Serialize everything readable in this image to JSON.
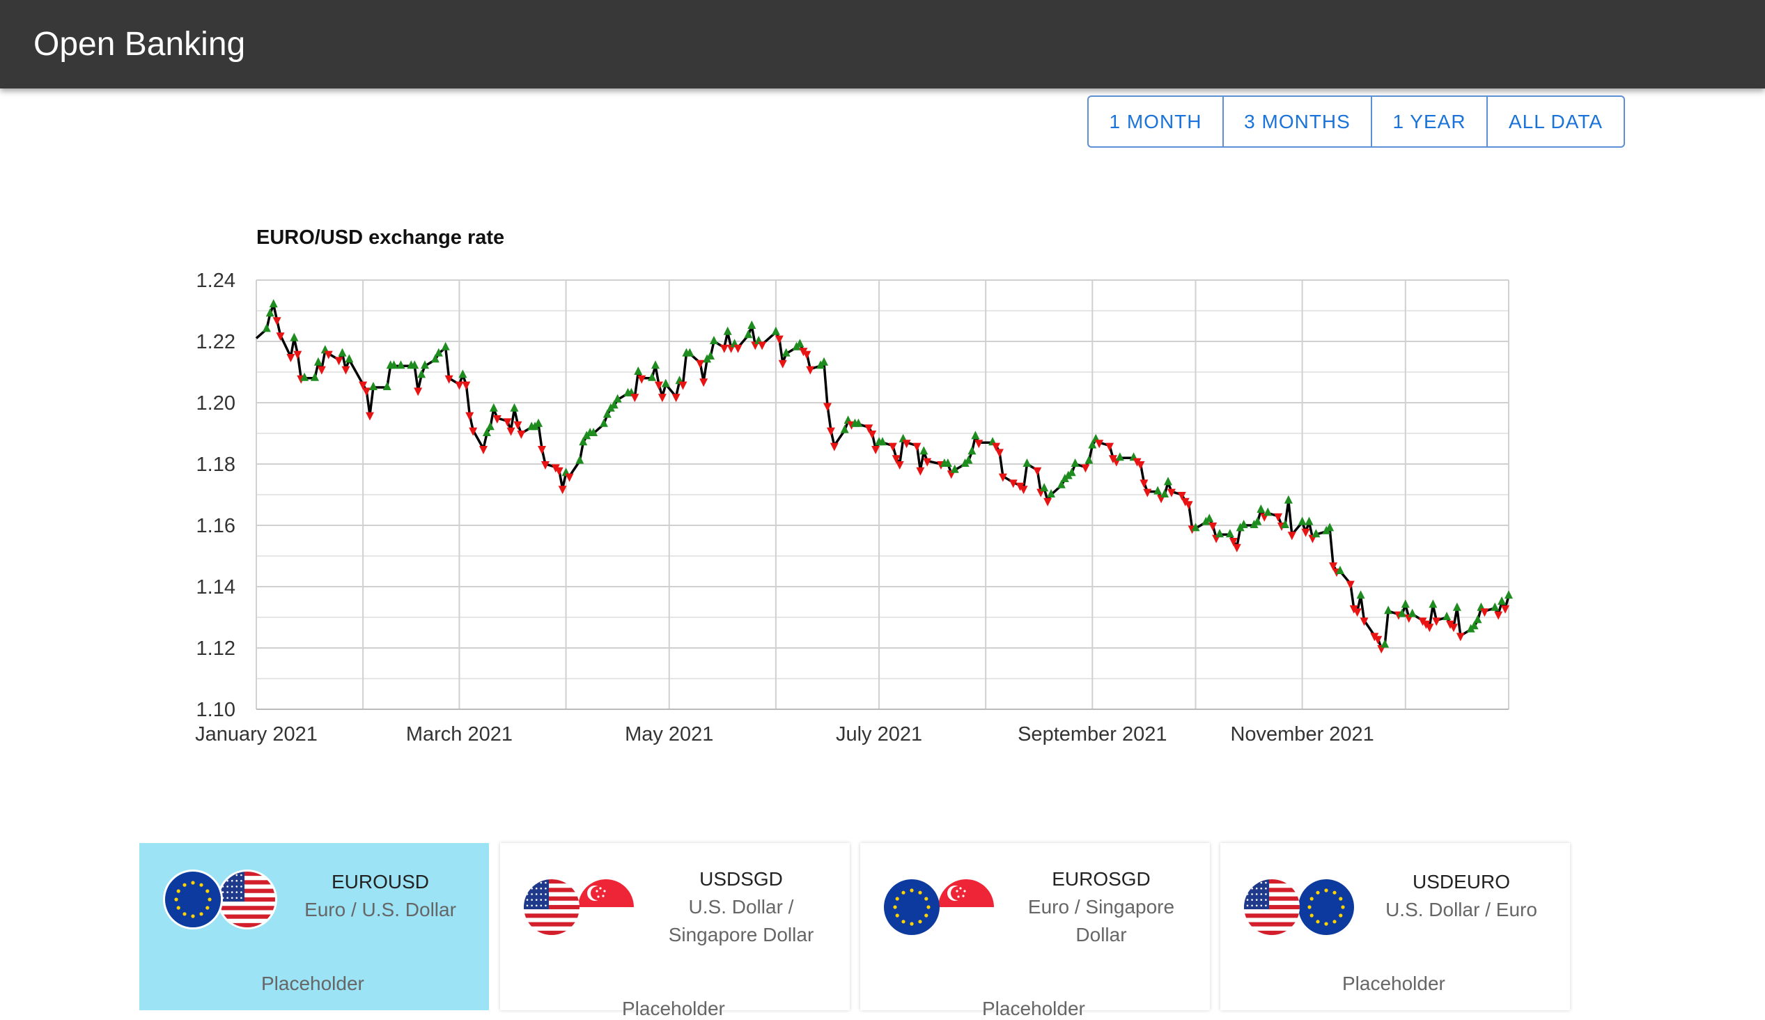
{
  "app": {
    "title": "Open Banking"
  },
  "range_buttons": [
    "1 MONTH",
    "3 MONTHS",
    "1 YEAR",
    "ALL DATA"
  ],
  "chart_data": {
    "type": "line",
    "title": "EURO/USD exchange rate",
    "xlabel": "",
    "ylabel": "",
    "ylim": [
      1.1,
      1.24
    ],
    "yticks": [
      "1.24",
      "1.22",
      "1.20",
      "1.18",
      "1.16",
      "1.14",
      "1.12",
      "1.10"
    ],
    "xticks": [
      "January 2021",
      "March 2021",
      "May 2021",
      "July 2021",
      "September 2021",
      "November 2021"
    ],
    "xrange": [
      "2021-01-01",
      "2021-12-31"
    ],
    "grid": true,
    "line_color": "#000000",
    "marker_up_color": "#1e8c1e",
    "marker_down_color": "#e81414",
    "series": [
      {
        "values": [
          [
            "2021-01-01",
            1.221
          ],
          [
            "2021-01-04",
            1.224
          ],
          [
            "2021-01-05",
            1.229
          ],
          [
            "2021-01-06",
            1.232
          ],
          [
            "2021-01-07",
            1.227
          ],
          [
            "2021-01-08",
            1.222
          ],
          [
            "2021-01-11",
            1.215
          ],
          [
            "2021-01-12",
            1.221
          ],
          [
            "2021-01-13",
            1.216
          ],
          [
            "2021-01-14",
            1.208
          ],
          [
            "2021-01-15",
            1.208
          ],
          [
            "2021-01-18",
            1.208
          ],
          [
            "2021-01-19",
            1.213
          ],
          [
            "2021-01-20",
            1.211
          ],
          [
            "2021-01-21",
            1.217
          ],
          [
            "2021-01-22",
            1.216
          ],
          [
            "2021-01-25",
            1.214
          ],
          [
            "2021-01-26",
            1.216
          ],
          [
            "2021-01-27",
            1.211
          ],
          [
            "2021-01-28",
            1.214
          ],
          [
            "2021-02-01",
            1.206
          ],
          [
            "2021-02-02",
            1.204
          ],
          [
            "2021-02-03",
            1.196
          ],
          [
            "2021-02-04",
            1.205
          ],
          [
            "2021-02-08",
            1.205
          ],
          [
            "2021-02-09",
            1.212
          ],
          [
            "2021-02-10",
            1.212
          ],
          [
            "2021-02-12",
            1.212
          ],
          [
            "2021-02-15",
            1.212
          ],
          [
            "2021-02-16",
            1.212
          ],
          [
            "2021-02-17",
            1.204
          ],
          [
            "2021-02-18",
            1.209
          ],
          [
            "2021-02-19",
            1.212
          ],
          [
            "2021-02-22",
            1.214
          ],
          [
            "2021-02-23",
            1.216
          ],
          [
            "2021-02-25",
            1.218
          ],
          [
            "2021-02-26",
            1.208
          ],
          [
            "2021-03-01",
            1.206
          ],
          [
            "2021-03-02",
            1.209
          ],
          [
            "2021-03-03",
            1.206
          ],
          [
            "2021-03-04",
            1.196
          ],
          [
            "2021-03-05",
            1.191
          ],
          [
            "2021-03-08",
            1.185
          ],
          [
            "2021-03-09",
            1.19
          ],
          [
            "2021-03-10",
            1.192
          ],
          [
            "2021-03-11",
            1.198
          ],
          [
            "2021-03-12",
            1.195
          ],
          [
            "2021-03-15",
            1.194
          ],
          [
            "2021-03-16",
            1.191
          ],
          [
            "2021-03-17",
            1.198
          ],
          [
            "2021-03-18",
            1.193
          ],
          [
            "2021-03-19",
            1.19
          ],
          [
            "2021-03-22",
            1.192
          ],
          [
            "2021-03-23",
            1.192
          ],
          [
            "2021-03-24",
            1.193
          ],
          [
            "2021-03-25",
            1.185
          ],
          [
            "2021-03-26",
            1.18
          ],
          [
            "2021-03-29",
            1.179
          ],
          [
            "2021-03-30",
            1.178
          ],
          [
            "2021-03-31",
            1.172
          ],
          [
            "2021-04-01",
            1.177
          ],
          [
            "2021-04-02",
            1.176
          ],
          [
            "2021-04-05",
            1.181
          ],
          [
            "2021-04-06",
            1.187
          ],
          [
            "2021-04-07",
            1.189
          ],
          [
            "2021-04-08",
            1.19
          ],
          [
            "2021-04-09",
            1.19
          ],
          [
            "2021-04-12",
            1.193
          ],
          [
            "2021-04-13",
            1.196
          ],
          [
            "2021-04-14",
            1.198
          ],
          [
            "2021-04-15",
            1.199
          ],
          [
            "2021-04-16",
            1.201
          ],
          [
            "2021-04-19",
            1.203
          ],
          [
            "2021-04-20",
            1.203
          ],
          [
            "2021-04-21",
            1.202
          ],
          [
            "2021-04-22",
            1.21
          ],
          [
            "2021-04-23",
            1.208
          ],
          [
            "2021-04-26",
            1.208
          ],
          [
            "2021-04-27",
            1.212
          ],
          [
            "2021-04-28",
            1.206
          ],
          [
            "2021-04-29",
            1.202
          ],
          [
            "2021-04-30",
            1.206
          ],
          [
            "2021-05-03",
            1.202
          ],
          [
            "2021-05-04",
            1.207
          ],
          [
            "2021-05-05",
            1.206
          ],
          [
            "2021-05-06",
            1.216
          ],
          [
            "2021-05-07",
            1.216
          ],
          [
            "2021-05-10",
            1.213
          ],
          [
            "2021-05-11",
            1.207
          ],
          [
            "2021-05-12",
            1.214
          ],
          [
            "2021-05-13",
            1.215
          ],
          [
            "2021-05-14",
            1.22
          ],
          [
            "2021-05-17",
            1.218
          ],
          [
            "2021-05-18",
            1.223
          ],
          [
            "2021-05-19",
            1.218
          ],
          [
            "2021-05-20",
            1.219
          ],
          [
            "2021-05-21",
            1.218
          ],
          [
            "2021-05-24",
            1.222
          ],
          [
            "2021-05-25",
            1.225
          ],
          [
            "2021-05-26",
            1.219
          ],
          [
            "2021-05-27",
            1.22
          ],
          [
            "2021-05-28",
            1.219
          ],
          [
            "2021-06-01",
            1.223
          ],
          [
            "2021-06-02",
            1.221
          ],
          [
            "2021-06-03",
            1.213
          ],
          [
            "2021-06-04",
            1.216
          ],
          [
            "2021-06-07",
            1.218
          ],
          [
            "2021-06-08",
            1.219
          ],
          [
            "2021-06-09",
            1.217
          ],
          [
            "2021-06-10",
            1.216
          ],
          [
            "2021-06-11",
            1.211
          ],
          [
            "2021-06-14",
            1.212
          ],
          [
            "2021-06-15",
            1.213
          ],
          [
            "2021-06-16",
            1.199
          ],
          [
            "2021-06-17",
            1.191
          ],
          [
            "2021-06-18",
            1.186
          ],
          [
            "2021-06-21",
            1.191
          ],
          [
            "2021-06-22",
            1.194
          ],
          [
            "2021-06-23",
            1.193
          ],
          [
            "2021-06-24",
            1.193
          ],
          [
            "2021-06-25",
            1.193
          ],
          [
            "2021-06-28",
            1.192
          ],
          [
            "2021-06-29",
            1.19
          ],
          [
            "2021-06-30",
            1.185
          ],
          [
            "2021-07-01",
            1.187
          ],
          [
            "2021-07-02",
            1.187
          ],
          [
            "2021-07-05",
            1.186
          ],
          [
            "2021-07-06",
            1.182
          ],
          [
            "2021-07-07",
            1.18
          ],
          [
            "2021-07-08",
            1.188
          ],
          [
            "2021-07-09",
            1.187
          ],
          [
            "2021-07-12",
            1.186
          ],
          [
            "2021-07-13",
            1.178
          ],
          [
            "2021-07-14",
            1.184
          ],
          [
            "2021-07-15",
            1.181
          ],
          [
            "2021-07-19",
            1.18
          ],
          [
            "2021-07-20",
            1.18
          ],
          [
            "2021-07-21",
            1.18
          ],
          [
            "2021-07-22",
            1.177
          ],
          [
            "2021-07-23",
            1.178
          ],
          [
            "2021-07-26",
            1.18
          ],
          [
            "2021-07-27",
            1.181
          ],
          [
            "2021-07-28",
            1.184
          ],
          [
            "2021-07-29",
            1.189
          ],
          [
            "2021-07-30",
            1.187
          ],
          [
            "2021-08-03",
            1.187
          ],
          [
            "2021-08-04",
            1.186
          ],
          [
            "2021-08-05",
            1.184
          ],
          [
            "2021-08-06",
            1.176
          ],
          [
            "2021-08-09",
            1.174
          ],
          [
            "2021-08-11",
            1.173
          ],
          [
            "2021-08-12",
            1.172
          ],
          [
            "2021-08-13",
            1.18
          ],
          [
            "2021-08-16",
            1.178
          ],
          [
            "2021-08-17",
            1.171
          ],
          [
            "2021-08-18",
            1.172
          ],
          [
            "2021-08-19",
            1.168
          ],
          [
            "2021-08-20",
            1.17
          ],
          [
            "2021-08-23",
            1.173
          ],
          [
            "2021-08-24",
            1.175
          ],
          [
            "2021-08-25",
            1.176
          ],
          [
            "2021-08-26",
            1.177
          ],
          [
            "2021-08-27",
            1.18
          ],
          [
            "2021-08-30",
            1.179
          ],
          [
            "2021-08-31",
            1.181
          ],
          [
            "2021-09-01",
            1.186
          ],
          [
            "2021-09-02",
            1.188
          ],
          [
            "2021-09-03",
            1.187
          ],
          [
            "2021-09-06",
            1.186
          ],
          [
            "2021-09-07",
            1.182
          ],
          [
            "2021-09-08",
            1.181
          ],
          [
            "2021-09-09",
            1.182
          ],
          [
            "2021-09-13",
            1.182
          ],
          [
            "2021-09-14",
            1.181
          ],
          [
            "2021-09-15",
            1.18
          ],
          [
            "2021-09-16",
            1.174
          ],
          [
            "2021-09-17",
            1.171
          ],
          [
            "2021-09-20",
            1.171
          ],
          [
            "2021-09-21",
            1.169
          ],
          [
            "2021-09-22",
            1.17
          ],
          [
            "2021-09-23",
            1.174
          ],
          [
            "2021-09-24",
            1.171
          ],
          [
            "2021-09-27",
            1.17
          ],
          [
            "2021-09-28",
            1.168
          ],
          [
            "2021-09-29",
            1.167
          ],
          [
            "2021-09-30",
            1.159
          ],
          [
            "2021-10-01",
            1.159
          ],
          [
            "2021-10-04",
            1.161
          ],
          [
            "2021-10-05",
            1.162
          ],
          [
            "2021-10-06",
            1.16
          ],
          [
            "2021-10-07",
            1.156
          ],
          [
            "2021-10-08",
            1.157
          ],
          [
            "2021-10-11",
            1.157
          ],
          [
            "2021-10-12",
            1.155
          ],
          [
            "2021-10-13",
            1.153
          ],
          [
            "2021-10-14",
            1.159
          ],
          [
            "2021-10-15",
            1.16
          ],
          [
            "2021-10-18",
            1.16
          ],
          [
            "2021-10-19",
            1.161
          ],
          [
            "2021-10-20",
            1.165
          ],
          [
            "2021-10-21",
            1.163
          ],
          [
            "2021-10-22",
            1.164
          ],
          [
            "2021-10-25",
            1.163
          ],
          [
            "2021-10-26",
            1.16
          ],
          [
            "2021-10-27",
            1.16
          ],
          [
            "2021-10-28",
            1.168
          ],
          [
            "2021-10-29",
            1.157
          ],
          [
            "2021-11-01",
            1.161
          ],
          [
            "2021-11-02",
            1.158
          ],
          [
            "2021-11-03",
            1.161
          ],
          [
            "2021-11-04",
            1.156
          ],
          [
            "2021-11-05",
            1.157
          ],
          [
            "2021-11-08",
            1.158
          ],
          [
            "2021-11-09",
            1.159
          ],
          [
            "2021-11-10",
            1.147
          ],
          [
            "2021-11-11",
            1.145
          ],
          [
            "2021-11-12",
            1.145
          ],
          [
            "2021-11-15",
            1.141
          ],
          [
            "2021-11-16",
            1.133
          ],
          [
            "2021-11-17",
            1.132
          ],
          [
            "2021-11-18",
            1.137
          ],
          [
            "2021-11-19",
            1.129
          ],
          [
            "2021-11-22",
            1.124
          ],
          [
            "2021-11-23",
            1.123
          ],
          [
            "2021-11-24",
            1.12
          ],
          [
            "2021-11-25",
            1.121
          ],
          [
            "2021-11-26",
            1.132
          ],
          [
            "2021-11-29",
            1.131
          ],
          [
            "2021-11-30",
            1.131
          ],
          [
            "2021-12-01",
            1.134
          ],
          [
            "2021-12-02",
            1.13
          ],
          [
            "2021-12-03",
            1.131
          ],
          [
            "2021-12-06",
            1.129
          ],
          [
            "2021-12-07",
            1.128
          ],
          [
            "2021-12-08",
            1.127
          ],
          [
            "2021-12-09",
            1.134
          ],
          [
            "2021-12-10",
            1.129
          ],
          [
            "2021-12-13",
            1.13
          ],
          [
            "2021-12-14",
            1.128
          ],
          [
            "2021-12-15",
            1.127
          ],
          [
            "2021-12-16",
            1.133
          ],
          [
            "2021-12-17",
            1.124
          ],
          [
            "2021-12-20",
            1.126
          ],
          [
            "2021-12-21",
            1.127
          ],
          [
            "2021-12-22",
            1.129
          ],
          [
            "2021-12-23",
            1.133
          ],
          [
            "2021-12-24",
            1.132
          ],
          [
            "2021-12-27",
            1.133
          ],
          [
            "2021-12-28",
            1.131
          ],
          [
            "2021-12-29",
            1.135
          ],
          [
            "2021-12-30",
            1.133
          ],
          [
            "2021-12-31",
            1.137
          ]
        ]
      }
    ]
  },
  "cards": [
    {
      "code": "EUROUSD",
      "name": "Euro / U.S. Dollar",
      "placeholder": "Placeholder",
      "active": true,
      "flags": [
        "eu-flag",
        "us-flag"
      ]
    },
    {
      "code": "USDSGD",
      "name": "U.S. Dollar / Singapore Dollar",
      "placeholder": "Placeholder",
      "active": false,
      "flags": [
        "us-flag",
        "sg-flag"
      ]
    },
    {
      "code": "EUROSGD",
      "name": "Euro / Singapore Dollar",
      "placeholder": "Placeholder",
      "active": false,
      "flags": [
        "eu-flag",
        "sg-flag"
      ]
    },
    {
      "code": "USDEURO",
      "name": "U.S. Dollar / Euro",
      "placeholder": "Placeholder",
      "active": false,
      "flags": [
        "us-flag",
        "eu-flag"
      ]
    }
  ],
  "colors": {
    "appbar": "#383838",
    "button_text": "#1a73d9",
    "button_border": "#5c8fd6",
    "card_active": "#9be3f5"
  }
}
